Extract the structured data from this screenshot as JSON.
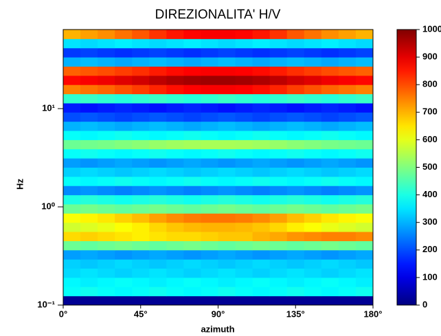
{
  "chart_data": {
    "type": "heatmap",
    "title": "DIREZIONALITA' H/V",
    "xlabel": "azimuth",
    "ylabel": "Hz",
    "xlim": [
      0,
      180
    ],
    "xticks": [
      {
        "value": 0,
        "label": "0°"
      },
      {
        "value": 45,
        "label": "45°"
      },
      {
        "value": 90,
        "label": "90°"
      },
      {
        "value": 135,
        "label": "135°"
      },
      {
        "value": 180,
        "label": "180°"
      }
    ],
    "ylim": [
      0.1,
      63.83
    ],
    "yscale": "log",
    "yticks": [
      {
        "value": 0.1,
        "label": "10⁻¹"
      },
      {
        "value": 1,
        "label": "10⁰"
      },
      {
        "value": 10,
        "label": "10¹"
      }
    ],
    "x_bins": [
      0,
      10,
      20,
      30,
      40,
      50,
      60,
      70,
      80,
      90,
      100,
      110,
      120,
      130,
      140,
      150,
      160,
      170,
      180
    ],
    "y_bins": [
      0.1,
      0.124,
      0.154,
      0.191,
      0.237,
      0.293,
      0.364,
      0.451,
      0.56,
      0.694,
      0.861,
      1.068,
      1.324,
      1.643,
      2.037,
      2.526,
      3.133,
      3.886,
      4.819,
      5.977,
      7.413,
      9.194,
      11.4,
      14.14,
      17.54,
      21.75,
      26.98,
      33.46,
      41.5,
      51.47,
      63.83
    ],
    "z": [
      [
        20,
        20,
        20,
        20,
        20,
        20,
        20,
        20,
        20,
        20,
        20,
        20,
        20,
        20,
        20,
        20,
        20,
        20
      ],
      [
        380,
        390,
        380,
        370,
        380,
        390,
        380,
        370,
        380,
        390,
        380,
        370,
        380,
        390,
        380,
        370,
        380,
        390
      ],
      [
        370,
        360,
        370,
        380,
        370,
        360,
        370,
        380,
        370,
        360,
        370,
        380,
        370,
        360,
        370,
        380,
        370,
        360
      ],
      [
        340,
        350,
        340,
        330,
        340,
        350,
        340,
        330,
        340,
        350,
        340,
        330,
        340,
        350,
        340,
        330,
        340,
        350
      ],
      [
        330,
        320,
        330,
        340,
        330,
        320,
        330,
        340,
        330,
        320,
        330,
        340,
        330,
        320,
        330,
        340,
        330,
        320
      ],
      [
        280,
        290,
        280,
        270,
        280,
        290,
        280,
        270,
        280,
        290,
        280,
        270,
        280,
        290,
        280,
        270,
        280,
        290
      ],
      [
        480,
        470,
        480,
        490,
        480,
        470,
        480,
        490,
        480,
        470,
        480,
        490,
        480,
        470,
        480,
        490,
        480,
        470
      ],
      [
        660,
        670,
        660,
        650,
        640,
        650,
        660,
        660,
        670,
        680,
        680,
        700,
        710,
        730,
        740,
        750,
        750,
        740
      ],
      [
        580,
        592,
        604,
        622,
        640,
        664,
        682,
        694,
        700,
        700,
        694,
        682,
        664,
        640,
        622,
        604,
        592,
        580
      ],
      [
        620,
        634,
        648,
        669,
        690,
        718,
        739,
        753,
        760,
        760,
        753,
        739,
        718,
        690,
        669,
        648,
        634,
        620
      ],
      [
        480,
        490,
        480,
        470,
        480,
        490,
        480,
        470,
        480,
        490,
        480,
        470,
        480,
        490,
        480,
        470,
        480,
        490
      ],
      [
        400,
        410,
        400,
        390,
        400,
        410,
        400,
        390,
        400,
        410,
        400,
        390,
        400,
        410,
        400,
        390,
        400,
        410
      ],
      [
        260,
        270,
        260,
        250,
        260,
        270,
        260,
        250,
        260,
        270,
        260,
        250,
        260,
        270,
        260,
        250,
        260,
        270
      ],
      [
        380,
        370,
        380,
        390,
        380,
        370,
        380,
        390,
        380,
        370,
        380,
        390,
        380,
        370,
        380,
        390,
        380,
        370
      ],
      [
        330,
        340,
        330,
        320,
        330,
        340,
        330,
        320,
        330,
        340,
        330,
        320,
        330,
        340,
        330,
        320,
        330,
        340
      ],
      [
        280,
        270,
        280,
        290,
        280,
        270,
        280,
        290,
        280,
        270,
        280,
        290,
        280,
        270,
        280,
        290,
        280,
        270
      ],
      [
        380,
        390,
        380,
        370,
        380,
        390,
        380,
        370,
        380,
        390,
        380,
        370,
        380,
        390,
        380,
        370,
        380,
        390
      ],
      [
        480,
        486,
        492,
        501,
        510,
        522,
        531,
        537,
        540,
        540,
        537,
        531,
        522,
        510,
        501,
        492,
        486,
        480
      ],
      [
        380,
        370,
        380,
        390,
        380,
        370,
        380,
        390,
        380,
        370,
        380,
        390,
        380,
        370,
        380,
        390,
        380,
        370
      ],
      [
        300,
        310,
        300,
        290,
        300,
        310,
        300,
        290,
        300,
        310,
        300,
        290,
        300,
        310,
        300,
        290,
        300,
        310
      ],
      [
        200,
        210,
        200,
        190,
        200,
        210,
        200,
        190,
        200,
        210,
        200,
        190,
        200,
        210,
        200,
        190,
        200,
        210
      ],
      [
        150,
        140,
        150,
        160,
        150,
        140,
        150,
        160,
        150,
        140,
        150,
        160,
        150,
        140,
        150,
        160,
        150,
        140
      ],
      [
        420,
        430,
        420,
        410,
        420,
        430,
        420,
        410,
        420,
        430,
        420,
        410,
        420,
        430,
        420,
        410,
        420,
        430
      ],
      [
        750,
        763,
        776,
        796,
        815,
        841,
        861,
        874,
        880,
        880,
        874,
        861,
        841,
        815,
        796,
        776,
        763,
        750
      ],
      [
        870,
        880,
        890,
        905,
        920,
        940,
        955,
        965,
        970,
        970,
        965,
        955,
        940,
        920,
        905,
        890,
        880,
        870
      ],
      [
        780,
        790,
        800,
        815,
        830,
        850,
        865,
        875,
        880,
        880,
        875,
        865,
        850,
        830,
        815,
        800,
        790,
        780
      ],
      [
        300,
        310,
        300,
        290,
        300,
        310,
        300,
        290,
        300,
        310,
        300,
        290,
        300,
        310,
        300,
        290,
        300,
        310
      ],
      [
        180,
        190,
        180,
        170,
        180,
        190,
        180,
        170,
        180,
        190,
        180,
        170,
        180,
        190,
        180,
        170,
        180,
        190
      ],
      [
        350,
        340,
        350,
        360,
        350,
        340,
        350,
        360,
        350,
        340,
        350,
        360,
        350,
        340,
        350,
        360,
        350,
        340
      ],
      [
        700,
        718,
        736,
        763,
        790,
        826,
        853,
        871,
        880,
        880,
        871,
        853,
        826,
        790,
        763,
        736,
        718,
        700
      ]
    ],
    "colormap": "jet",
    "colorbar": {
      "lim": [
        0,
        1000
      ],
      "ticks": [
        0,
        100,
        200,
        300,
        400,
        500,
        600,
        700,
        800,
        900,
        1000
      ]
    }
  }
}
